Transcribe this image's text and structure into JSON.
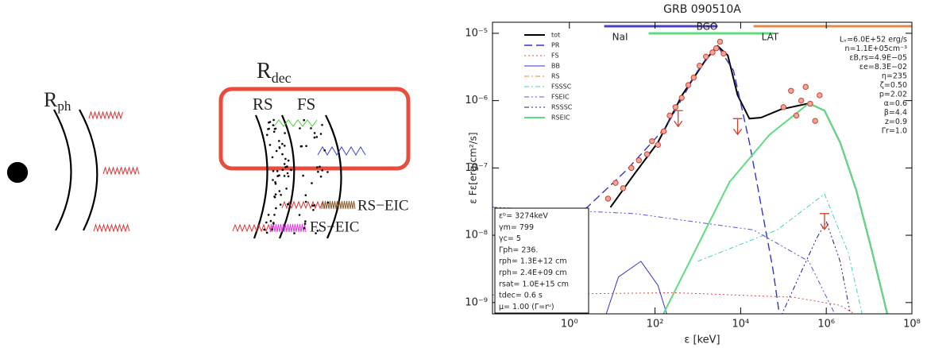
{
  "diagram": {
    "rph": {
      "main": "R",
      "sub": "ph"
    },
    "rdec": {
      "main": "R",
      "sub": "dec"
    },
    "rs": "RS",
    "fs": "FS",
    "rs_eic": "RS−EIC",
    "fs_eic": "FS−EIC"
  },
  "chart_data": {
    "type": "line",
    "title": "GRB 090510A",
    "x_label": "ε  [keV]",
    "y_label": "ε Fε[erg/cm²/s]",
    "log_x": true,
    "log_y": true,
    "xlim": [
      0.016,
      100000000
    ],
    "ylim": [
      6.8e-10,
      1.46e-05
    ],
    "xticks": [
      {
        "value": 1,
        "label": "10⁰"
      },
      {
        "value": 100,
        "label": "10²"
      },
      {
        "value": 10000,
        "label": "10⁴"
      },
      {
        "value": 1000000,
        "label": "10⁶"
      },
      {
        "value": 100000000,
        "label": "10⁸"
      }
    ],
    "yticks": [
      {
        "value": 1e-09,
        "label": "10⁻⁹"
      },
      {
        "value": 1e-08,
        "label": "10⁻⁸"
      },
      {
        "value": 1e-07,
        "label": "10⁻⁷"
      },
      {
        "value": 1e-06,
        "label": "10⁻⁶"
      },
      {
        "value": 1e-05,
        "label": "10⁻⁵"
      }
    ],
    "legend": "upper left",
    "series": [
      {
        "name": "tot",
        "color": "#000000",
        "dash": "none",
        "width": 2,
        "x": [
          9.1,
          33,
          117,
          427,
          1550,
          2880,
          5000,
          8500,
          16000,
          30000,
          87000,
          390000,
          910000,
          2100000,
          5000000,
          12000000,
          27500000
        ],
        "values": [
          2.6e-08,
          8.1e-08,
          2.4e-07,
          1.2e-06,
          4.1e-06,
          6.5e-06,
          4.7e-06,
          1.2e-06,
          5.4e-07,
          5.6e-07,
          7.4e-07,
          9.1e-07,
          7.1e-07,
          2.4e-07,
          4.7e-08,
          5.4e-09,
          6.2e-10
        ]
      },
      {
        "name": "PR",
        "color": "#3333cc",
        "dash": "10,5",
        "width": 1.4,
        "x": [
          0.3,
          2.6,
          21,
          182,
          1000,
          2880,
          6800,
          16000,
          30000,
          57000,
          87000
        ],
        "values": [
          9.1e-09,
          2.6e-08,
          9.1e-08,
          4.1e-07,
          2.8e-06,
          6.5e-06,
          2.8e-06,
          2.4e-07,
          2.8e-08,
          3.1e-09,
          4.7e-10
        ]
      },
      {
        "name": "FS",
        "color": "#e8463a",
        "dash": "2,3",
        "width": 1,
        "x": [
          0.016,
          275,
          170000,
          2100000,
          12000000
        ],
        "values": [
          1.3e-09,
          1.4e-09,
          1.2e-09,
          9.1e-10,
          4.7e-10
        ]
      },
      {
        "name": "BB",
        "color": "#3333cc",
        "dash": "none",
        "width": 1,
        "x": [
          6,
          14,
          47,
          117,
          224
        ],
        "values": [
          4.7e-10,
          2.4e-09,
          4.1e-09,
          1.8e-09,
          4.7e-10
        ]
      },
      {
        "name": "RS",
        "color": "#e08a2e",
        "dash": "6,3,2,3",
        "width": 1,
        "x": [],
        "values": []
      },
      {
        "name": "FSSSC",
        "color": "#45d0c8",
        "dash": "6,3,2,3",
        "width": 1,
        "x": [
          1000,
          71000,
          910000,
          3300000,
          7800000
        ],
        "values": [
          4.1e-09,
          1.2e-08,
          4.1e-08,
          5.4e-09,
          4.7e-10
        ]
      },
      {
        "name": "FSEIC",
        "color": "#5555dd",
        "dash": "6,3,2,3,2,3",
        "width": 1,
        "x": [
          0.016,
          33,
          20000,
          390000,
          2100000
        ],
        "values": [
          2.6e-08,
          2.1e-08,
          1.2e-08,
          4.1e-09,
          4.7e-10
        ]
      },
      {
        "name": "RSSSC",
        "color": "#1a1a8a",
        "dash": "6,3,2,3,2,3,2,3",
        "width": 1,
        "x": [
          71000,
          600000,
          1000000,
          2100000,
          4100000
        ],
        "values": [
          4.7e-10,
          9.1e-09,
          1.6e-08,
          4.1e-09,
          4.7e-10
        ]
      },
      {
        "name": "RSEIC",
        "color": "#5fdc7f",
        "dash": "none",
        "width": 2,
        "x": [
          117,
          650,
          5500,
          47000,
          390000,
          910000,
          2100000,
          5000000,
          12000000,
          27500000
        ],
        "values": [
          4.7e-10,
          4.1e-09,
          6.2e-08,
          3.1e-07,
          9.1e-07,
          7.1e-07,
          2.4e-07,
          4.7e-08,
          5.4e-09,
          6.2e-10
        ]
      }
    ],
    "observations": {
      "color": "#d2402f",
      "x": [
        8,
        12,
        18,
        28,
        42,
        65,
        85,
        117,
        160,
        220,
        300,
        420,
        600,
        800,
        1100,
        1550,
        2200,
        2700,
        3300,
        4000,
        100000,
        150000,
        200000,
        260000,
        330000,
        420000,
        550000,
        700000
      ],
      "values": [
        3.5e-08,
        6e-08,
        5e-08,
        1e-07,
        1.3e-07,
        1.6e-07,
        2.5e-07,
        2.2e-07,
        3.5e-07,
        6e-07,
        8e-07,
        1.1e-06,
        1.7e-06,
        2.2e-06,
        3.3e-06,
        4.5e-06,
        5.2e-06,
        6e-06,
        7.5e-06,
        5e-06,
        8e-07,
        1.4e-06,
        6e-07,
        1e-06,
        1.6e-06,
        9e-07,
        5e-07,
        1.2e-06
      ]
    },
    "upper_limits": {
      "color": "#d2402f",
      "x": [
        347,
        8500,
        910000
      ],
      "values": [
        7.1e-07,
        5.4e-07,
        2.1e-08
      ]
    },
    "bands": [
      {
        "name": "NaI",
        "color": "#4a3fc0",
        "range": [
          6.5,
          2900
        ]
      },
      {
        "name": "BGO",
        "color": "#5fdc7f",
        "range": [
          71,
          57000
        ]
      },
      {
        "name": "LAT",
        "color": "#e08a4a",
        "range": [
          20000,
          100000000
        ]
      }
    ],
    "parameters": [
      "Lᵥ=6.0E+52 erg/s",
      "n=1.1E+05cm⁻³",
      "εB,rs=4.9E−05",
      "εe=8.3E−02",
      "η=235",
      "ζ=0.50",
      "p=2.02",
      "α=0.6",
      "β=4.4",
      "z=0.9",
      "Γr=1.0"
    ],
    "inset": [
      "εᵇ= 3274keV",
      "γm= 799",
      "γc= 5",
      "Γph= 236.",
      "rph= 1.3E+12 cm",
      "rph= 2.4E+09 cm",
      "rsat= 1.0E+15 cm",
      "tdec= 0.6 s",
      "μ= 1.00  (Γ=rᵘ)"
    ]
  }
}
